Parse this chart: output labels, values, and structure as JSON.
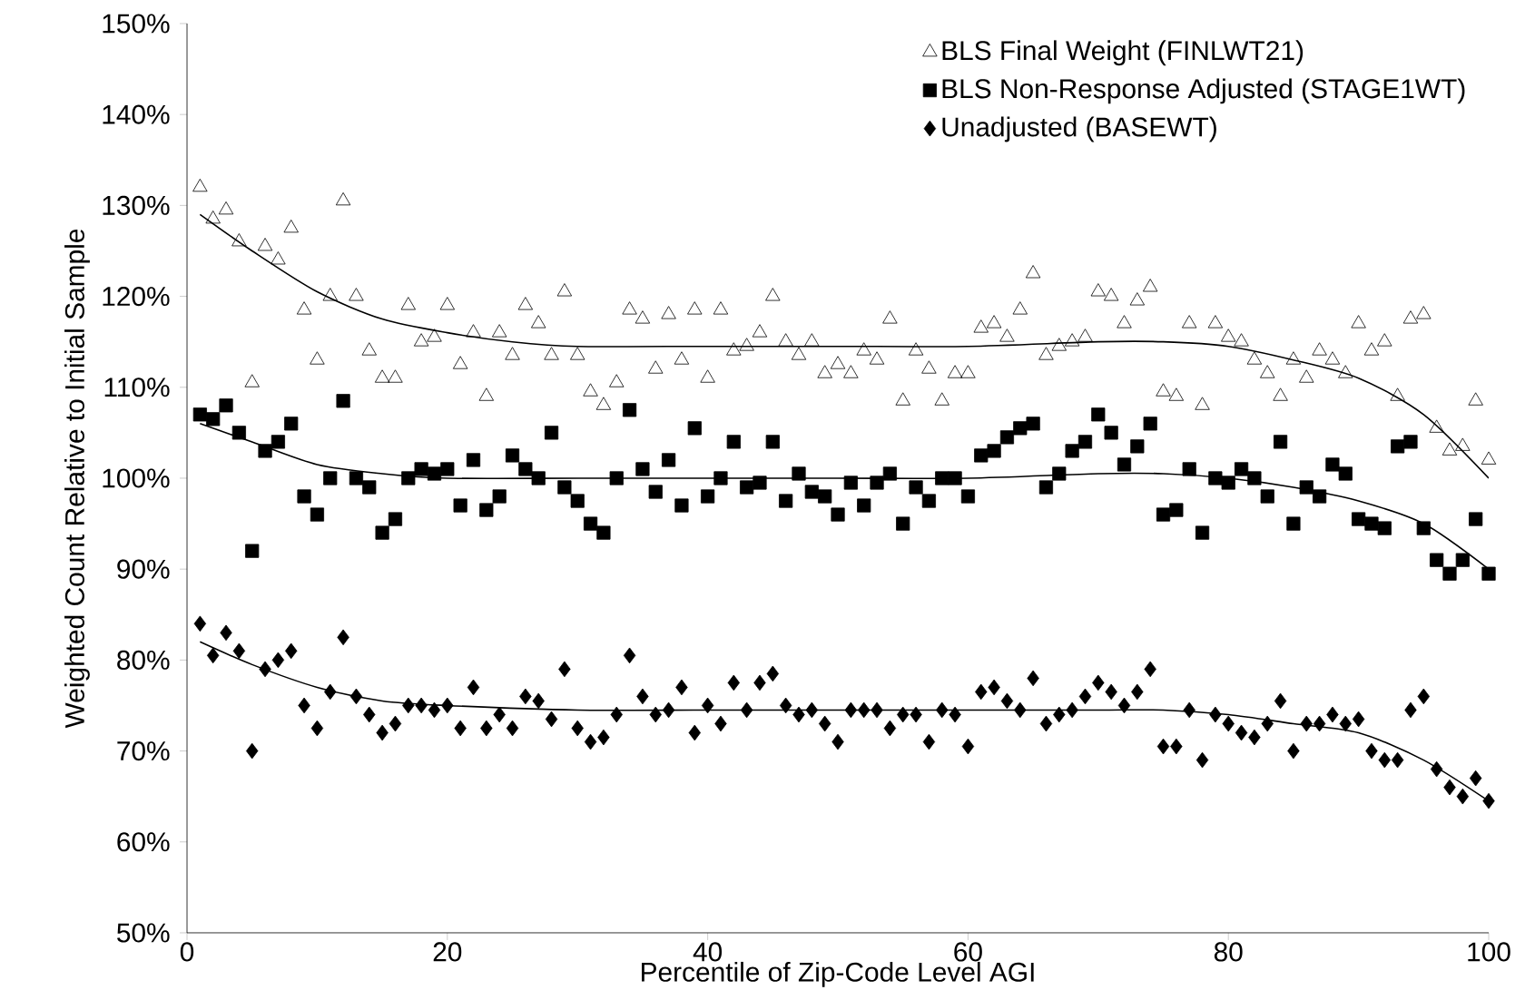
{
  "chart_data": {
    "type": "scatter",
    "xlabel": "Percentile of Zip-Code Level AGI",
    "ylabel": "Weighted Count Relative to Initial Sample",
    "xlim": [
      0,
      100
    ],
    "xticks": [
      0,
      20,
      40,
      60,
      80,
      100
    ],
    "ylim": [
      50,
      150
    ],
    "yticks": [
      {
        "value": 50,
        "label": "50%"
      },
      {
        "value": 60,
        "label": "60%"
      },
      {
        "value": 70,
        "label": "70%"
      },
      {
        "value": 80,
        "label": "80%"
      },
      {
        "value": 90,
        "label": "90%"
      },
      {
        "value": 100,
        "label": "100%"
      },
      {
        "value": 110,
        "label": "110%"
      },
      {
        "value": 120,
        "label": "120%"
      },
      {
        "value": 130,
        "label": "130%"
      },
      {
        "value": 140,
        "label": "140%"
      },
      {
        "value": 150,
        "label": "150%"
      }
    ],
    "legend": "top right",
    "grid": false,
    "x": [
      1,
      2,
      3,
      4,
      5,
      6,
      7,
      8,
      9,
      10,
      11,
      12,
      13,
      14,
      15,
      16,
      17,
      18,
      19,
      20,
      21,
      22,
      23,
      24,
      25,
      26,
      27,
      28,
      29,
      30,
      31,
      32,
      33,
      34,
      35,
      36,
      37,
      38,
      39,
      40,
      41,
      42,
      43,
      44,
      45,
      46,
      47,
      48,
      49,
      50,
      51,
      52,
      53,
      54,
      55,
      56,
      57,
      58,
      59,
      60,
      61,
      62,
      63,
      64,
      65,
      66,
      67,
      68,
      69,
      70,
      71,
      72,
      73,
      74,
      75,
      76,
      77,
      78,
      79,
      80,
      81,
      82,
      83,
      84,
      85,
      86,
      87,
      88,
      89,
      90,
      91,
      92,
      93,
      94,
      95,
      96,
      97,
      98,
      99,
      100
    ],
    "series": [
      {
        "name": "BLS Final Weight (FINLWT21)",
        "color": "#000000",
        "marker": "triangle",
        "values": [
          132,
          128.5,
          129.5,
          126,
          110.5,
          125.5,
          124,
          127.5,
          118.5,
          113,
          120,
          130.5,
          120,
          114,
          111,
          111,
          119,
          115,
          115.5,
          119,
          112.5,
          116,
          109,
          116,
          113.5,
          119,
          117,
          113.5,
          120.5,
          113.5,
          109.5,
          108,
          110.5,
          118.5,
          117.5,
          112,
          118,
          113,
          118.5,
          111,
          118.5,
          114,
          114.5,
          116,
          120,
          115,
          113.5,
          115,
          111.5,
          112.5,
          111.5,
          114,
          113,
          117.5,
          108.5,
          114,
          112,
          108.5,
          111.5,
          111.5,
          116.5,
          117,
          115.5,
          118.5,
          122.5,
          113.5,
          114.5,
          115,
          115.5,
          120.5,
          120,
          117,
          119.5,
          121,
          109.5,
          109,
          117,
          108,
          117,
          115.5,
          115,
          113,
          111.5,
          109,
          113,
          111,
          114,
          113,
          111.5,
          117,
          114,
          115,
          109,
          117.5,
          118,
          105.5,
          103,
          103.5,
          108.5,
          102
        ]
      },
      {
        "name": "BLS Non-Response Adjusted (STAGE1WT)",
        "color": "#000000",
        "marker": "square",
        "values": [
          107,
          106.5,
          108,
          105,
          92,
          103,
          104,
          106,
          98,
          96,
          100,
          108.5,
          100,
          99,
          94,
          95.5,
          100,
          101,
          100.5,
          101,
          97,
          102,
          96.5,
          98,
          102.5,
          101,
          100,
          105,
          99,
          97.5,
          95,
          94,
          100,
          107.5,
          101,
          98.5,
          102,
          97,
          105.5,
          98,
          100,
          104,
          99,
          99.5,
          104,
          97.5,
          100.5,
          98.5,
          98,
          96,
          99.5,
          97,
          99.5,
          100.5,
          95,
          99,
          97.5,
          100,
          100,
          98,
          102.5,
          103,
          104.5,
          105.5,
          106,
          99,
          100.5,
          103,
          104,
          107,
          105,
          101.5,
          103.5,
          106,
          96,
          96.5,
          101,
          94,
          100,
          99.5,
          101,
          100,
          98,
          104,
          95,
          99,
          98,
          101.5,
          100.5,
          95.5,
          95,
          94.5,
          103.5,
          104,
          94.5,
          91,
          89.5,
          91,
          95.5,
          89.5
        ]
      },
      {
        "name": "Unadjusted (BASEWT)",
        "color": "#000000",
        "marker": "diamond",
        "values": [
          84,
          80.5,
          83,
          81,
          70,
          79,
          80,
          81,
          75,
          72.5,
          76.5,
          82.5,
          76,
          74,
          72,
          73,
          75,
          75,
          74.5,
          75,
          72.5,
          77,
          72.5,
          74,
          72.5,
          76,
          75.5,
          73.5,
          79,
          72.5,
          71,
          71.5,
          74,
          80.5,
          76,
          74,
          74.5,
          77,
          72,
          75,
          73,
          77.5,
          74.5,
          77.5,
          78.5,
          75,
          74,
          74.5,
          73,
          71,
          74.5,
          74.5,
          74.5,
          72.5,
          74,
          74,
          71,
          74.5,
          74,
          70.5,
          76.5,
          77,
          75.5,
          74.5,
          78,
          73,
          74,
          74.5,
          76,
          77.5,
          76.5,
          75,
          76.5,
          79,
          70.5,
          70.5,
          74.5,
          69,
          74,
          73,
          72,
          71.5,
          73,
          75.5,
          70,
          73,
          73,
          74,
          73,
          73.5,
          70,
          69,
          69,
          74.5,
          76,
          68,
          66,
          65,
          67,
          64.5
        ]
      },
      {
        "type": "line",
        "color": "#000000",
        "marker": "none",
        "x": [
          1,
          5,
          10,
          15,
          20,
          25,
          30,
          40,
          50,
          60,
          70,
          75,
          80,
          85,
          90,
          95,
          100
        ],
        "values": [
          129,
          125,
          120.5,
          117.5,
          116,
          115,
          114.5,
          114.5,
          114.5,
          114.5,
          115,
          115,
          114.5,
          113,
          111,
          107,
          100
        ]
      },
      {
        "type": "line",
        "color": "#000000",
        "marker": "none",
        "x": [
          1,
          5,
          10,
          15,
          20,
          30,
          40,
          50,
          60,
          70,
          75,
          80,
          85,
          90,
          95,
          100
        ],
        "values": [
          106,
          104,
          101.5,
          100.5,
          100,
          100,
          100,
          100,
          100,
          100.5,
          100.5,
          100,
          99,
          97.5,
          95,
          90
        ]
      },
      {
        "type": "line",
        "color": "#000000",
        "marker": "none",
        "x": [
          1,
          5,
          10,
          15,
          20,
          30,
          40,
          50,
          60,
          70,
          75,
          80,
          85,
          90,
          95,
          100
        ],
        "values": [
          82,
          79.5,
          77,
          75.5,
          75,
          74.5,
          74.5,
          74.5,
          74.5,
          74.5,
          74.5,
          74,
          73,
          72,
          69,
          64.5
        ]
      }
    ]
  }
}
